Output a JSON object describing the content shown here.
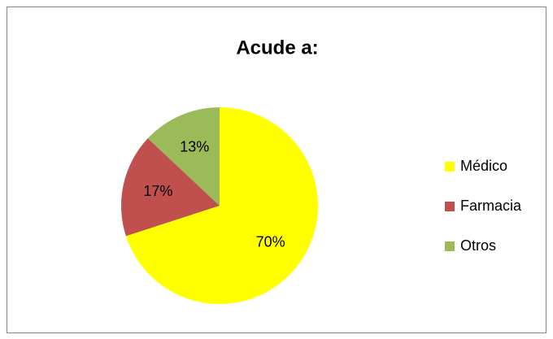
{
  "chart_data": {
    "type": "pie",
    "title": "Acude a:",
    "categories": [
      "Médico",
      "Farmacia",
      "Otros"
    ],
    "values": [
      70,
      17,
      13
    ],
    "value_labels": [
      "70%",
      "17%",
      "13%"
    ],
    "colors": [
      "#ffff00",
      "#c0504d",
      "#9bbb59"
    ],
    "legend": "right"
  }
}
